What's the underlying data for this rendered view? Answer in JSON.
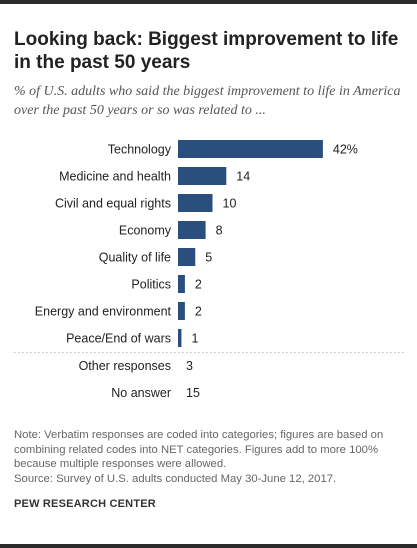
{
  "title": "Looking back: Biggest improvement to life in the past 50 years",
  "subtitle": "% of U.S. adults who said the biggest improvement to life in America over the past 50 years or so was related to ...",
  "chart_data": {
    "type": "bar",
    "orientation": "horizontal",
    "categories": [
      "Technology",
      "Medicine and health",
      "Civil and equal rights",
      "Economy",
      "Quality of life",
      "Politics",
      "Energy and environment",
      "Peace/End of wars"
    ],
    "values": [
      42,
      14,
      10,
      8,
      5,
      2,
      2,
      1
    ],
    "value_labels": [
      "42%",
      "14",
      "10",
      "8",
      "5",
      "2",
      "2",
      "1"
    ],
    "extra_rows": [
      {
        "label": "Other responses",
        "value": 3,
        "value_label": "3"
      },
      {
        "label": "No answer",
        "value": 15,
        "value_label": "15"
      }
    ],
    "unit": "%",
    "bar_color": "#2a4f7f",
    "grid": false
  },
  "footnote": "Note: Verbatim responses are coded into categories; figures are based on combining related codes into NET categories. Figures add to more 100% because multiple responses were allowed.",
  "source": "Source: Survey of U.S. adults conducted May 30-June 12, 2017.",
  "organization": "PEW RESEARCH CENTER"
}
